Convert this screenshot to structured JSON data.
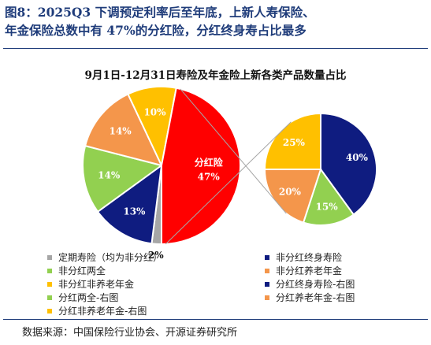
{
  "figure": {
    "heading_line1": "图8：2025Q3 下调预定利率后至年底，上新人寿保险、",
    "heading_line2": "年金保险总数中有 47%的分红险，分红终身寿占比最多",
    "source": "数据来源：中国保险行业协会、开源证券研究所"
  },
  "chart_data": {
    "type": "pie",
    "title": "9月1日-12月31日寿险及年金险上新各类产品数量占比",
    "charts": [
      {
        "name": "main",
        "slices": [
          {
            "label": "定期寿险（均为非分红）",
            "value": 2,
            "display": "2%",
            "color": "#a6a6a6"
          },
          {
            "label": "非分红终身寿险",
            "value": 13,
            "display": "13%",
            "color": "#0f1c80"
          },
          {
            "label": "非分红两全",
            "value": 14,
            "display": "14%",
            "color": "#92d050"
          },
          {
            "label": "非分红养老年金",
            "value": 14,
            "display": "14%",
            "color": "#f4964b"
          },
          {
            "label": "非分红非养老年金",
            "value": 10,
            "display": "10%",
            "color": "#ffc000"
          },
          {
            "label": "分红险",
            "value": 47,
            "display": "分红险\n47%",
            "color": "#ff0000"
          }
        ]
      },
      {
        "name": "right",
        "slices": [
          {
            "label": "分红终身寿险-右图",
            "value": 40,
            "display": "40%",
            "color": "#0f1c80"
          },
          {
            "label": "分红两全-右图",
            "value": 15,
            "display": "15%",
            "color": "#92d050"
          },
          {
            "label": "分红养老年金-右图",
            "value": 20,
            "display": "20%",
            "color": "#f4964b"
          },
          {
            "label": "分红非养老年金-右图",
            "value": 25,
            "display": "25%",
            "color": "#ffc000"
          }
        ]
      }
    ],
    "legend": [
      {
        "label": "定期寿险（均为非分红）",
        "color": "#a6a6a6"
      },
      {
        "label": "非分红终身寿险",
        "color": "#0f1c80"
      },
      {
        "label": "非分红两全",
        "color": "#92d050"
      },
      {
        "label": "非分红养老年金",
        "color": "#f4964b"
      },
      {
        "label": "非分红非养老年金",
        "color": "#ffc000"
      },
      {
        "label": "分红终身寿险-右图",
        "color": "#0f1c80"
      },
      {
        "label": "分红两全-右图",
        "color": "#92d050"
      },
      {
        "label": "分红养老年金-右图",
        "color": "#f4964b"
      },
      {
        "label": "分红非养老年金-右图",
        "color": "#ffc000"
      }
    ],
    "legend_placement": "bottom"
  }
}
